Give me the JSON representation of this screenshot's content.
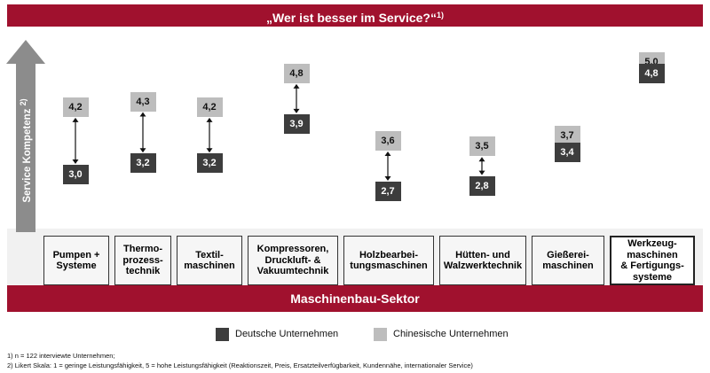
{
  "header": {
    "title": "„Wer ist besser im Service?“",
    "title_note": "1)"
  },
  "footer_banner": {
    "label": "Maschinenbau-Sektor"
  },
  "axis": {
    "label": "Service Kompetenz",
    "label_note": "2)"
  },
  "legend": [
    {
      "label": "Deutsche Unternehmen",
      "color": "#3d3d3d"
    },
    {
      "label": "Chinesische Unternehmen",
      "color": "#bdbdbd"
    }
  ],
  "footnotes": [
    "1) n = 122 interviewte Unternehmen;",
    "2) Likert Skala: 1 = geringe Leistungsfähigkeit, 5 = hohe Leistungsfähigkeit (Reaktionszeit, Preis, Ersatzteilverfügbarkeit, Kundennähe, internationaler Service)"
  ],
  "chart_data": {
    "type": "dot-pair",
    "categories": [
      [
        "Pumpen +",
        "Systeme"
      ],
      [
        "Thermo-",
        "prozess-",
        "technik"
      ],
      [
        "Textil-",
        "maschinen"
      ],
      [
        "Kompressoren,",
        "Druckluft- &",
        "Vakuumtechnik"
      ],
      [
        "Holzbearbei-",
        "tungsmaschinen"
      ],
      [
        "Hütten- und",
        "Walzwerktechnik"
      ],
      [
        "Gießerei-",
        "maschinen"
      ],
      [
        "Werkzeug-",
        "maschinen",
        "& Fertigungs-",
        "systeme"
      ]
    ],
    "series": [
      {
        "name": "Deutsche Unternehmen",
        "values": [
          3.0,
          3.2,
          3.2,
          3.9,
          2.7,
          2.8,
          3.4,
          4.8
        ],
        "labels": [
          "3,0",
          "3,2",
          "3,2",
          "3,9",
          "2,7",
          "2,8",
          "3,4",
          "4,8"
        ]
      },
      {
        "name": "Chinesische Unternehmen",
        "values": [
          4.2,
          4.3,
          4.2,
          4.8,
          3.6,
          3.5,
          3.7,
          5.0
        ],
        "labels": [
          "4,2",
          "4,3",
          "4,2",
          "4,8",
          "3,6",
          "3,5",
          "3,7",
          "5,0"
        ]
      }
    ],
    "ylabel": "Service Kompetenz"
  }
}
